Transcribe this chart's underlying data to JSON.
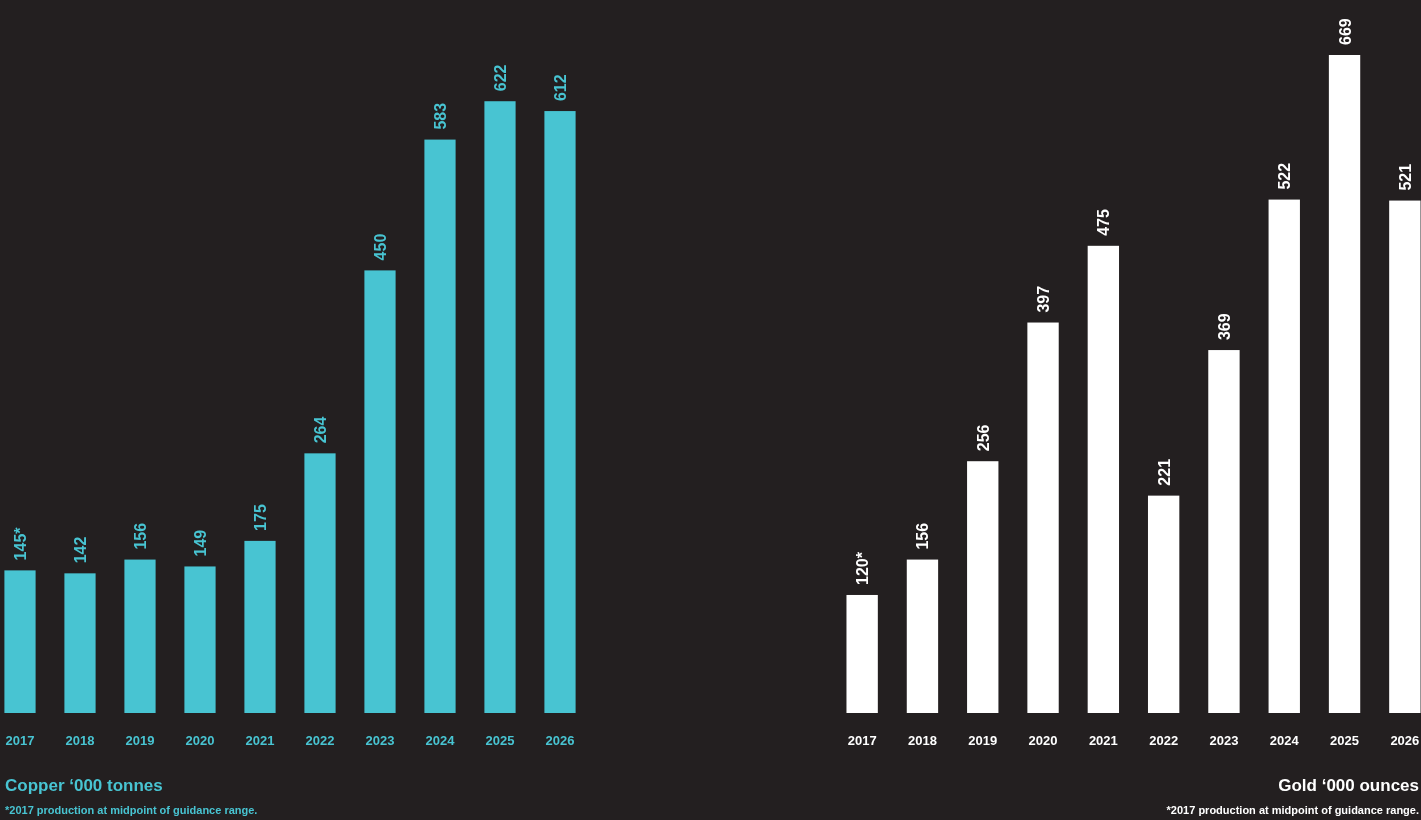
{
  "chart_data": [
    {
      "type": "bar",
      "title": "Copper ‘000 tonnes",
      "categories": [
        "2017",
        "2018",
        "2019",
        "2020",
        "2021",
        "2022",
        "2023",
        "2024",
        "2025",
        "2026"
      ],
      "series": [
        {
          "color": "#48c4d2",
          "values": [
            145,
            142,
            156,
            149,
            175,
            264,
            450,
            583,
            622,
            612
          ],
          "value_labels": [
            "145*",
            "142",
            "156",
            "149",
            "175",
            "264",
            "450",
            "583",
            "622",
            "612"
          ]
        }
      ],
      "annotations": [
        "*2017 production at midpoint of guidance range."
      ]
    },
    {
      "type": "bar",
      "title": "Gold ‘000 ounces",
      "categories": [
        "2017",
        "2018",
        "2019",
        "2020",
        "2021",
        "2022",
        "2023",
        "2024",
        "2025",
        "2026"
      ],
      "series": [
        {
          "color": "#ffffff",
          "values": [
            120,
            156,
            256,
            397,
            475,
            221,
            369,
            522,
            669,
            521
          ],
          "value_labels": [
            "120*",
            "156",
            "256",
            "397",
            "475",
            "221",
            "369",
            "522",
            "669",
            "521"
          ]
        }
      ],
      "annotations": [
        "*2017 production at midpoint of guidance range."
      ]
    }
  ]
}
